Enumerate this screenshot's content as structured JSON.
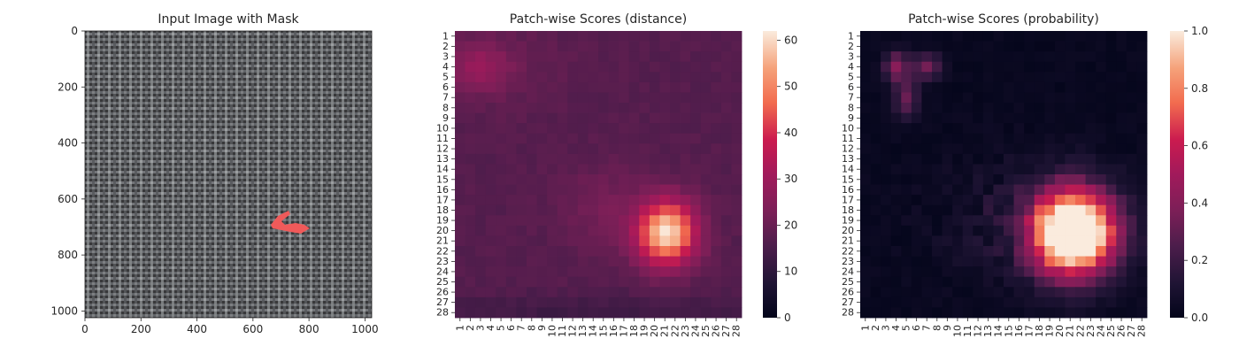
{
  "chart_data": [
    {
      "type": "image",
      "title": "Input Image with Mask",
      "xlim": [
        0,
        1024
      ],
      "ylim": [
        1024,
        0
      ],
      "xticks": [
        0,
        200,
        400,
        600,
        800,
        1000
      ],
      "yticks": [
        0,
        200,
        400,
        600,
        800,
        1000
      ],
      "image_content": "dark woven fabric texture",
      "mask_color": "#f05a5a",
      "mask_region": {
        "x_range": [
          660,
          800
        ],
        "y_range": [
          640,
          720
        ]
      }
    },
    {
      "type": "heatmap",
      "title": "Patch-wise Scores (distance)",
      "rows": 28,
      "cols": 28,
      "tick_labels": [
        "1",
        "2",
        "3",
        "4",
        "5",
        "6",
        "7",
        "8",
        "9",
        "10",
        "11",
        "12",
        "13",
        "14",
        "15",
        "16",
        "17",
        "18",
        "19",
        "20",
        "21",
        "22",
        "23",
        "24",
        "25",
        "26",
        "27",
        "28"
      ],
      "colorbar": {
        "min": 0,
        "max": 62,
        "ticks": [
          0,
          10,
          20,
          30,
          40,
          50,
          60
        ]
      },
      "colormap": "rocket",
      "hotspots": [
        {
          "row": 20,
          "col": 21,
          "value": 62
        },
        {
          "row": 4,
          "col": 3,
          "value": 27
        }
      ],
      "background_value": 18
    },
    {
      "type": "heatmap",
      "title": "Patch-wise Scores (probability)",
      "rows": 28,
      "cols": 28,
      "tick_labels": [
        "1",
        "2",
        "3",
        "4",
        "5",
        "6",
        "7",
        "8",
        "9",
        "10",
        "11",
        "12",
        "13",
        "14",
        "15",
        "16",
        "17",
        "18",
        "19",
        "20",
        "21",
        "22",
        "23",
        "24",
        "25",
        "26",
        "27",
        "28"
      ],
      "colorbar": {
        "min": 0.0,
        "max": 1.0,
        "ticks": [
          "0.0",
          "0.2",
          "0.4",
          "0.6",
          "0.8",
          "1.0"
        ]
      },
      "colormap": "rocket",
      "hotspots": [
        {
          "row": 20,
          "col": 21,
          "value": 1.0
        },
        {
          "row": 4,
          "col": 4,
          "value": 0.4
        },
        {
          "row": 4,
          "col": 7,
          "value": 0.35
        }
      ],
      "background_value": 0.02
    }
  ]
}
